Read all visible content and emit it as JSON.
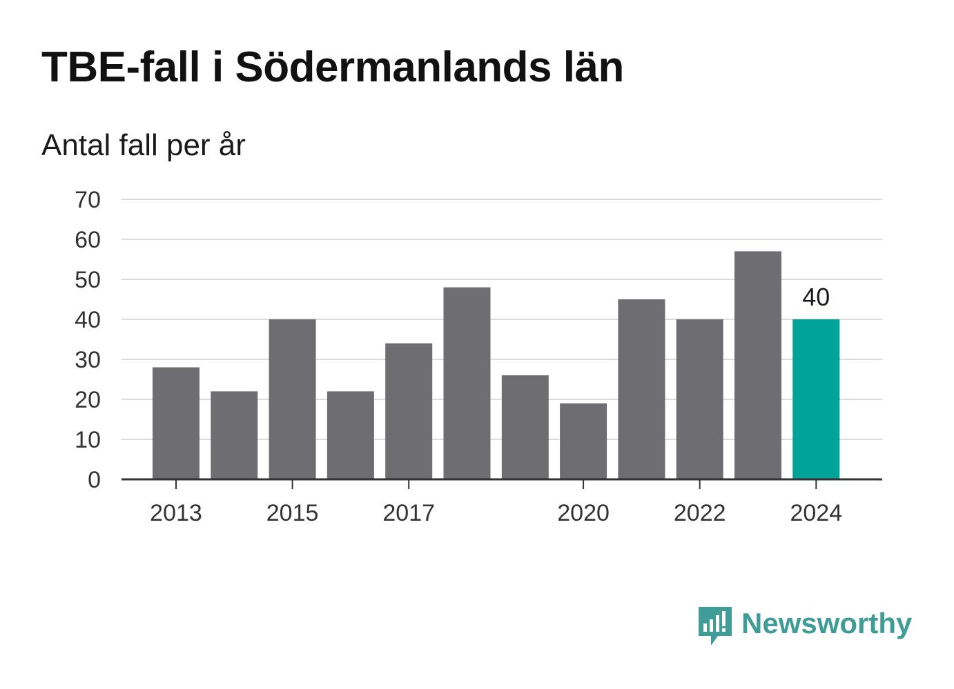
{
  "chart_data": {
    "type": "bar",
    "title": "TBE-fall i Södermanlands län",
    "subtitle": "Antal fall per år",
    "xlabel": "",
    "ylabel": "",
    "categories": [
      "2013",
      "2014",
      "2015",
      "2016",
      "2017",
      "2018",
      "2019",
      "2020",
      "2021",
      "2022",
      "2023",
      "2024"
    ],
    "values": [
      28,
      22,
      40,
      22,
      34,
      48,
      26,
      19,
      45,
      40,
      57,
      40
    ],
    "x_tick_labels": [
      "2013",
      "2015",
      "2017",
      "2020",
      "2022",
      "2024"
    ],
    "y_ticks": [
      0,
      10,
      20,
      30,
      40,
      50,
      60,
      70
    ],
    "ylim": [
      0,
      70
    ],
    "grid": true,
    "legend": "none",
    "highlight": {
      "category": "2024",
      "label": "40"
    },
    "colors": {
      "bar": "#6e6d72",
      "highlight": "#00a398",
      "grid": "#dcdcdc",
      "axis": "#333333",
      "text": "#333333"
    }
  },
  "brand": {
    "name": "Newsworthy",
    "icon": "newsworthy-logo-icon",
    "color": "#3f9c96"
  }
}
